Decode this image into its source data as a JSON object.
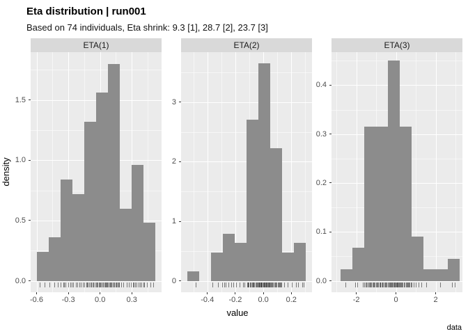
{
  "header": {
    "title": "Eta distribution | run001",
    "subtitle": "Based on 74 individuals, Eta shrink: 9.3 [1], 28.7 [2], 23.7 [3]"
  },
  "axes": {
    "y_label": "density",
    "x_label": "value"
  },
  "caption": "data",
  "colors": {
    "bar_fill": "#8c8c8c",
    "panel_background": "#ebebeb",
    "strip_background": "#d9d9d9",
    "gridline": "#ffffff",
    "axis_text": "#4d4d4d",
    "tick_mark": "#333333",
    "rug": "#1a1a1a",
    "title_text": "#000000"
  },
  "chart_data": {
    "type": "bar",
    "subtype": "faceted-histogram-with-rug",
    "title": "Eta distribution | run001",
    "subtitle": "Based on 74 individuals, Eta shrink: 9.3 [1], 28.7 [2], 23.7 [3]",
    "xlabel": "value",
    "ylabel": "density",
    "caption": "data",
    "legend": "none",
    "grid": "major-and-minor-white-on-grey",
    "n_individuals": 74,
    "facets": [
      {
        "strip_label": "ETA(1)",
        "bin_start": -0.6,
        "bin_width": 0.1125,
        "densities": [
          0.24,
          0.36,
          0.84,
          0.72,
          1.32,
          1.56,
          1.8,
          0.6,
          0.96,
          0.48
        ],
        "counts": [
          2,
          3,
          7,
          6,
          11,
          13,
          15,
          5,
          8,
          4
        ],
        "xlim": [
          -0.656,
          0.581
        ],
        "ylim": [
          -0.095,
          1.897
        ],
        "x_ticks": [
          {
            "v": -0.6,
            "t": "-0.6"
          },
          {
            "v": -0.3,
            "t": "-0.3"
          },
          {
            "v": 0.0,
            "t": "0.0"
          },
          {
            "v": 0.3,
            "t": "0.3"
          }
        ],
        "y_ticks": [
          {
            "v": 0.0,
            "t": "0.0"
          },
          {
            "v": 0.5,
            "t": "0.5"
          },
          {
            "v": 1.0,
            "t": "1.0"
          },
          {
            "v": 1.5,
            "t": "1.5"
          }
        ]
      },
      {
        "strip_label": "ETA(2)",
        "bin_start": -0.545,
        "bin_width": 0.085,
        "densities": [
          0.159,
          0,
          0.477,
          0.795,
          0.636,
          2.703,
          3.657,
          2.226,
          0.477,
          0.636
        ],
        "counts": [
          1,
          0,
          3,
          5,
          4,
          17,
          23,
          14,
          3,
          4
        ],
        "xlim": [
          -0.588,
          0.348
        ],
        "ylim": [
          -0.192,
          3.84
        ],
        "x_ticks": [
          {
            "v": -0.4,
            "t": "-0.4"
          },
          {
            "v": -0.2,
            "t": "-0.2"
          },
          {
            "v": 0.0,
            "t": "0.0"
          },
          {
            "v": 0.2,
            "t": "0.2"
          }
        ],
        "y_ticks": [
          {
            "v": 0,
            "t": "0"
          },
          {
            "v": 1,
            "t": "1"
          },
          {
            "v": 2,
            "t": "2"
          },
          {
            "v": 3,
            "t": "3"
          }
        ]
      },
      {
        "strip_label": "ETA(3)",
        "bin_start": -2.8,
        "bin_width": 0.6,
        "densities": [
          0.023,
          0.068,
          0.315,
          0.315,
          0.45,
          0.315,
          0.09,
          0.023,
          0.023,
          0.045
        ],
        "counts": [
          1,
          3,
          14,
          14,
          20,
          14,
          4,
          1,
          1,
          2
        ],
        "xlim": [
          -3.25,
          3.35
        ],
        "ylim": [
          -0.0234,
          0.4675
        ],
        "x_ticks": [
          {
            "v": -2,
            "t": "-2"
          },
          {
            "v": 0,
            "t": "0"
          },
          {
            "v": 2,
            "t": "2"
          }
        ],
        "y_ticks": [
          {
            "v": 0.0,
            "t": "0.0"
          },
          {
            "v": 0.1,
            "t": "0.1"
          },
          {
            "v": 0.2,
            "t": "0.2"
          },
          {
            "v": 0.3,
            "t": "0.3"
          },
          {
            "v": 0.4,
            "t": "0.4"
          }
        ]
      }
    ]
  }
}
